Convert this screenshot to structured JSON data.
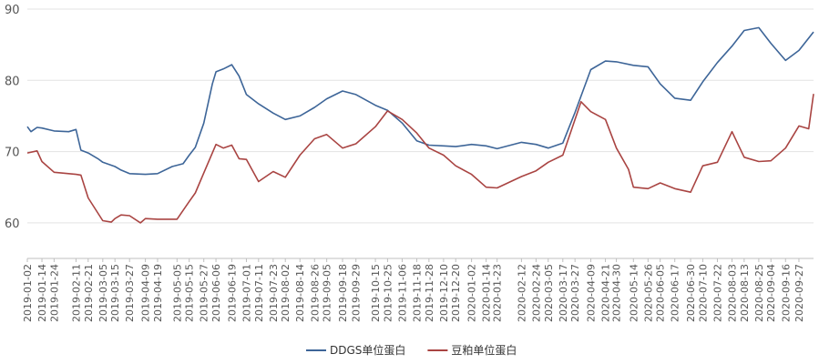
{
  "chart_data": {
    "type": "line",
    "ylim": [
      55,
      90
    ],
    "y_ticks": [
      60,
      70,
      80,
      90
    ],
    "grid": "horizontal",
    "legend": "bottom-center",
    "x_ticks": [
      "2019-01-02",
      "2019-01-14",
      "2019-01-24",
      "2019-02-11",
      "2019-02-21",
      "2019-03-05",
      "2019-03-15",
      "2019-03-27",
      "2019-04-09",
      "2019-04-19",
      "2019-05-05",
      "2019-05-15",
      "2019-05-27",
      "2019-06-06",
      "2019-06-19",
      "2019-07-01",
      "2019-07-11",
      "2019-07-23",
      "2019-08-02",
      "2019-08-14",
      "2019-08-26",
      "2019-09-05",
      "2019-09-18",
      "2019-09-29",
      "2019-10-15",
      "2019-10-25",
      "2019-11-06",
      "2019-11-18",
      "2019-11-28",
      "2019-12-10",
      "2019-12-20",
      "2020-01-02",
      "2020-01-14",
      "2020-01-23",
      "2020-02-12",
      "2020-02-24",
      "2020-03-05",
      "2020-03-17",
      "2020-03-27",
      "2020-04-09",
      "2020-04-21",
      "2020-04-30",
      "2020-05-14",
      "2020-05-26",
      "2020-06-05",
      "2020-06-17",
      "2020-06-30",
      "2020-07-10",
      "2020-07-22",
      "2020-08-03",
      "2020-08-13",
      "2020-08-25",
      "2020-09-04",
      "2020-09-16",
      "2020-09-27"
    ],
    "series": [
      {
        "name": "DDGS单位蛋白",
        "color": "#3d6598",
        "x": [
          "2019-01-02",
          "2019-01-05",
          "2019-01-10",
          "2019-01-14",
          "2019-01-24",
          "2019-02-05",
          "2019-02-11",
          "2019-02-15",
          "2019-02-21",
          "2019-03-01",
          "2019-03-05",
          "2019-03-15",
          "2019-03-20",
          "2019-03-27",
          "2019-04-09",
          "2019-04-19",
          "2019-05-01",
          "2019-05-10",
          "2019-05-15",
          "2019-05-20",
          "2019-05-27",
          "2019-06-03",
          "2019-06-06",
          "2019-06-12",
          "2019-06-19",
          "2019-06-25",
          "2019-07-01",
          "2019-07-11",
          "2019-07-23",
          "2019-08-02",
          "2019-08-14",
          "2019-08-26",
          "2019-09-05",
          "2019-09-18",
          "2019-09-29",
          "2019-10-15",
          "2019-10-25",
          "2019-11-06",
          "2019-11-18",
          "2019-11-28",
          "2019-12-10",
          "2019-12-20",
          "2020-01-02",
          "2020-01-14",
          "2020-01-23",
          "2020-02-12",
          "2020-02-24",
          "2020-03-05",
          "2020-03-17",
          "2020-03-27",
          "2020-04-09",
          "2020-04-21",
          "2020-04-30",
          "2020-05-14",
          "2020-05-26",
          "2020-06-05",
          "2020-06-17",
          "2020-06-30",
          "2020-07-10",
          "2020-07-22",
          "2020-08-03",
          "2020-08-13",
          "2020-08-25",
          "2020-09-04",
          "2020-09-16",
          "2020-09-27",
          "2020-10-09"
        ],
        "values": [
          73.5,
          72.8,
          73.4,
          73.3,
          72.9,
          72.8,
          73.1,
          70.2,
          69.8,
          69.0,
          68.5,
          67.9,
          67.4,
          66.9,
          66.8,
          66.9,
          67.9,
          68.3,
          69.5,
          70.6,
          74.0,
          79.5,
          81.2,
          81.6,
          82.2,
          80.6,
          78.0,
          76.7,
          75.4,
          74.5,
          75.0,
          76.2,
          77.4,
          78.5,
          78.0,
          76.5,
          75.8,
          74.0,
          71.5,
          70.9,
          70.8,
          70.7,
          71.0,
          70.8,
          70.4,
          71.3,
          71.0,
          70.5,
          71.2,
          75.5,
          81.5,
          82.7,
          82.6,
          82.1,
          81.9,
          79.5,
          77.5,
          77.2,
          79.8,
          82.5,
          84.8,
          87.0,
          87.4,
          85.2,
          82.8,
          84.2,
          86.8
        ]
      },
      {
        "name": "豆粕单位蛋白",
        "color": "#a94442",
        "x": [
          "2019-01-02",
          "2019-01-10",
          "2019-01-14",
          "2019-01-24",
          "2019-02-11",
          "2019-02-15",
          "2019-02-21",
          "2019-03-05",
          "2019-03-12",
          "2019-03-15",
          "2019-03-20",
          "2019-03-27",
          "2019-04-05",
          "2019-04-09",
          "2019-04-19",
          "2019-05-05",
          "2019-05-15",
          "2019-05-20",
          "2019-05-27",
          "2019-06-03",
          "2019-06-06",
          "2019-06-12",
          "2019-06-19",
          "2019-06-25",
          "2019-07-01",
          "2019-07-11",
          "2019-07-23",
          "2019-08-02",
          "2019-08-14",
          "2019-08-26",
          "2019-09-05",
          "2019-09-18",
          "2019-09-29",
          "2019-10-15",
          "2019-10-25",
          "2019-11-06",
          "2019-11-18",
          "2019-11-28",
          "2019-12-10",
          "2019-12-20",
          "2020-01-02",
          "2020-01-14",
          "2020-01-23",
          "2020-02-12",
          "2020-02-24",
          "2020-03-05",
          "2020-03-17",
          "2020-03-27",
          "2020-04-01",
          "2020-04-09",
          "2020-04-21",
          "2020-04-30",
          "2020-05-10",
          "2020-05-14",
          "2020-05-26",
          "2020-06-05",
          "2020-06-17",
          "2020-06-30",
          "2020-07-10",
          "2020-07-22",
          "2020-08-03",
          "2020-08-13",
          "2020-08-25",
          "2020-09-04",
          "2020-09-16",
          "2020-09-27",
          "2020-10-05",
          "2020-10-09"
        ],
        "values": [
          69.8,
          70.1,
          68.6,
          67.1,
          66.8,
          66.7,
          63.5,
          60.3,
          60.1,
          60.6,
          61.1,
          61.0,
          60.0,
          60.6,
          60.5,
          60.5,
          63.0,
          64.2,
          67.0,
          69.8,
          71.0,
          70.5,
          70.9,
          69.0,
          68.9,
          65.8,
          67.2,
          66.4,
          69.5,
          71.8,
          72.4,
          70.5,
          71.1,
          73.5,
          75.7,
          74.5,
          72.6,
          70.5,
          69.5,
          68.0,
          66.8,
          65.0,
          64.9,
          66.5,
          67.3,
          68.5,
          69.5,
          74.5,
          77.0,
          75.6,
          74.5,
          70.5,
          67.5,
          65.0,
          64.8,
          65.6,
          64.8,
          64.3,
          68.0,
          68.5,
          72.8,
          69.2,
          68.6,
          68.7,
          70.5,
          73.6,
          73.2,
          78.1
        ]
      }
    ]
  }
}
